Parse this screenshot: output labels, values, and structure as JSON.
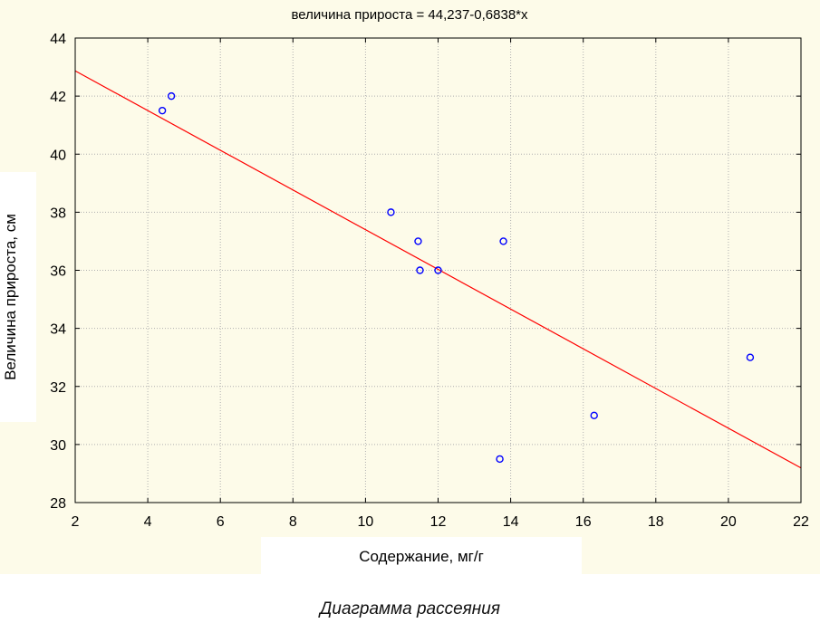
{
  "chart_data": {
    "type": "scatter",
    "title": "величина прироста = 44,237-0,6838*x",
    "xlabel": "Содержание, мг/г",
    "ylabel": "Величина прироста, см",
    "xlim": [
      2,
      22
    ],
    "ylim": [
      28,
      44
    ],
    "x_ticks": [
      2,
      4,
      6,
      8,
      10,
      12,
      14,
      16,
      18,
      20,
      22
    ],
    "y_ticks": [
      28,
      30,
      32,
      34,
      36,
      38,
      40,
      42,
      44
    ],
    "grid": true,
    "points": [
      {
        "x": 4.4,
        "y": 41.5
      },
      {
        "x": 4.65,
        "y": 42.0
      },
      {
        "x": 10.7,
        "y": 38.0
      },
      {
        "x": 11.45,
        "y": 37.0
      },
      {
        "x": 11.5,
        "y": 36.0
      },
      {
        "x": 12.0,
        "y": 36.0
      },
      {
        "x": 13.8,
        "y": 37.0
      },
      {
        "x": 13.7,
        "y": 29.5
      },
      {
        "x": 16.3,
        "y": 31.0
      },
      {
        "x": 20.6,
        "y": 33.0
      }
    ],
    "regression": {
      "intercept": 44.237,
      "slope": -0.6838
    },
    "colors": {
      "points": "#0000ff",
      "line": "#ff0000",
      "background": "#fdfbe9",
      "grid": "#b0b0b0"
    }
  },
  "caption": "Диаграмма рассеяния"
}
